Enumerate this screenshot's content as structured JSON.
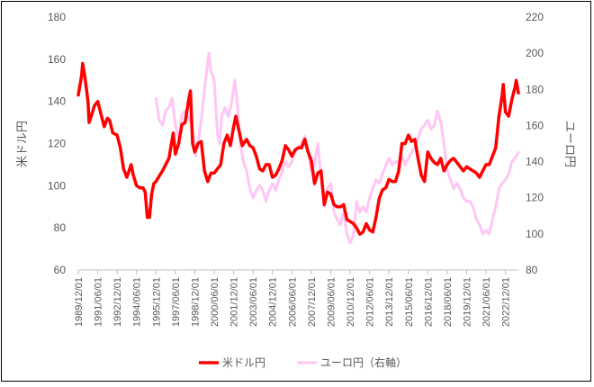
{
  "chart_data": {
    "type": "line",
    "title": "",
    "ylabel": "米ドル円",
    "y2label": "ユーロ円",
    "ylim": [
      60,
      180
    ],
    "y2lim": [
      80,
      220
    ],
    "yticks": [
      "60",
      "80",
      "100",
      "120",
      "140",
      "160",
      "180"
    ],
    "y2ticks": [
      "80",
      "100",
      "120",
      "140",
      "160",
      "180",
      "200",
      "220"
    ],
    "xlim": [
      "1989/12/01",
      "2023/12/01"
    ],
    "xticks": [
      "1989/12/01",
      "1991/06/01",
      "1992/12/01",
      "1994/06/01",
      "1995/12/01",
      "1997/06/01",
      "1998/12/01",
      "2000/06/01",
      "2001/12/01",
      "2003/06/01",
      "2004/12/01",
      "2006/06/01",
      "2007/12/01",
      "2009/06/01",
      "2010/12/01",
      "2012/06/01",
      "2013/12/01",
      "2015/06/01",
      "2016/12/01",
      "2018/06/01",
      "2019/12/01",
      "2021/06/01",
      "2022/12/01"
    ],
    "grid": false,
    "legend_position": "bottom",
    "series": [
      {
        "name": "米ドル円",
        "axis": "left",
        "color": "#ff0000",
        "points": [
          [
            "1989/12/01",
            143
          ],
          [
            "1990/03/01",
            152
          ],
          [
            "1990/04/01",
            158
          ],
          [
            "1990/06/01",
            152
          ],
          [
            "1990/09/01",
            140
          ],
          [
            "1990/10/01",
            130
          ],
          [
            "1990/12/01",
            133
          ],
          [
            "1991/03/01",
            138
          ],
          [
            "1991/06/01",
            140
          ],
          [
            "1991/09/01",
            134
          ],
          [
            "1991/12/01",
            128
          ],
          [
            "1992/03/01",
            132
          ],
          [
            "1992/05/01",
            131
          ],
          [
            "1992/08/01",
            125
          ],
          [
            "1992/12/01",
            124
          ],
          [
            "1993/03/01",
            118
          ],
          [
            "1993/06/01",
            108
          ],
          [
            "1993/09/01",
            104
          ],
          [
            "1994/01/01",
            110
          ],
          [
            "1994/03/01",
            105
          ],
          [
            "1994/06/01",
            100
          ],
          [
            "1994/09/01",
            99
          ],
          [
            "1994/12/01",
            99
          ],
          [
            "1995/02/01",
            97
          ],
          [
            "1995/04/01",
            85
          ],
          [
            "1995/06/01",
            85
          ],
          [
            "1995/08/01",
            96
          ],
          [
            "1995/10/01",
            101
          ],
          [
            "1995/12/01",
            102
          ],
          [
            "1996/06/01",
            107
          ],
          [
            "1996/12/01",
            113
          ],
          [
            "1997/04/01",
            125
          ],
          [
            "1997/06/01",
            115
          ],
          [
            "1997/09/01",
            120
          ],
          [
            "1997/12/01",
            129
          ],
          [
            "1998/03/01",
            130
          ],
          [
            "1998/06/01",
            140
          ],
          [
            "1998/08/01",
            145
          ],
          [
            "1998/10/01",
            120
          ],
          [
            "1998/12/01",
            116
          ],
          [
            "1999/03/01",
            120
          ],
          [
            "1999/06/01",
            121
          ],
          [
            "1999/09/01",
            107
          ],
          [
            "1999/12/01",
            102
          ],
          [
            "2000/03/01",
            106
          ],
          [
            "2000/06/01",
            106
          ],
          [
            "2000/09/01",
            108
          ],
          [
            "2000/12/01",
            110
          ],
          [
            "2001/03/01",
            120
          ],
          [
            "2001/06/01",
            124
          ],
          [
            "2001/09/01",
            119
          ],
          [
            "2001/12/01",
            128
          ],
          [
            "2002/02/01",
            133
          ],
          [
            "2002/05/01",
            126
          ],
          [
            "2002/08/01",
            119
          ],
          [
            "2002/12/01",
            122
          ],
          [
            "2003/03/01",
            119
          ],
          [
            "2003/06/01",
            118
          ],
          [
            "2003/09/01",
            114
          ],
          [
            "2003/12/01",
            108
          ],
          [
            "2004/03/01",
            107
          ],
          [
            "2004/06/01",
            110
          ],
          [
            "2004/09/01",
            110
          ],
          [
            "2004/12/01",
            104
          ],
          [
            "2005/03/01",
            105
          ],
          [
            "2005/06/01",
            108
          ],
          [
            "2005/09/01",
            112
          ],
          [
            "2005/12/01",
            119
          ],
          [
            "2006/03/01",
            117
          ],
          [
            "2006/06/01",
            114
          ],
          [
            "2006/09/01",
            117
          ],
          [
            "2006/12/01",
            118
          ],
          [
            "2007/03/01",
            118
          ],
          [
            "2007/06/01",
            122
          ],
          [
            "2007/09/01",
            116
          ],
          [
            "2007/12/01",
            112
          ],
          [
            "2008/03/01",
            101
          ],
          [
            "2008/06/01",
            106
          ],
          [
            "2008/09/01",
            107
          ],
          [
            "2008/12/01",
            91
          ],
          [
            "2009/03/01",
            97
          ],
          [
            "2009/06/01",
            96
          ],
          [
            "2009/09/01",
            91
          ],
          [
            "2009/12/01",
            90
          ],
          [
            "2010/03/01",
            90
          ],
          [
            "2010/06/01",
            91
          ],
          [
            "2010/09/01",
            84
          ],
          [
            "2010/12/01",
            83
          ],
          [
            "2011/03/01",
            82
          ],
          [
            "2011/06/01",
            80
          ],
          [
            "2011/09/01",
            77
          ],
          [
            "2011/12/01",
            78
          ],
          [
            "2012/03/01",
            82
          ],
          [
            "2012/06/01",
            79
          ],
          [
            "2012/09/01",
            78
          ],
          [
            "2012/12/01",
            85
          ],
          [
            "2013/03/01",
            94
          ],
          [
            "2013/06/01",
            98
          ],
          [
            "2013/09/01",
            99
          ],
          [
            "2013/12/01",
            103
          ],
          [
            "2014/03/01",
            102
          ],
          [
            "2014/06/01",
            102
          ],
          [
            "2014/09/01",
            107
          ],
          [
            "2014/12/01",
            120
          ],
          [
            "2015/03/01",
            120
          ],
          [
            "2015/06/01",
            124
          ],
          [
            "2015/09/01",
            121
          ],
          [
            "2015/12/01",
            122
          ],
          [
            "2016/03/01",
            113
          ],
          [
            "2016/06/01",
            105
          ],
          [
            "2016/09/01",
            102
          ],
          [
            "2016/12/01",
            116
          ],
          [
            "2017/03/01",
            113
          ],
          [
            "2017/06/01",
            111
          ],
          [
            "2017/09/01",
            110
          ],
          [
            "2017/12/01",
            113
          ],
          [
            "2018/03/01",
            107
          ],
          [
            "2018/06/01",
            110
          ],
          [
            "2018/09/01",
            112
          ],
          [
            "2018/12/01",
            113
          ],
          [
            "2019/03/01",
            111
          ],
          [
            "2019/06/01",
            109
          ],
          [
            "2019/09/01",
            107
          ],
          [
            "2019/12/01",
            109
          ],
          [
            "2020/03/01",
            108
          ],
          [
            "2020/06/01",
            107
          ],
          [
            "2020/09/01",
            106
          ],
          [
            "2020/12/01",
            104
          ],
          [
            "2021/03/01",
            107
          ],
          [
            "2021/06/01",
            110
          ],
          [
            "2021/09/01",
            110
          ],
          [
            "2021/12/01",
            114
          ],
          [
            "2022/03/01",
            118
          ],
          [
            "2022/06/01",
            133
          ],
          [
            "2022/09/01",
            143
          ],
          [
            "2022/10/01",
            148
          ],
          [
            "2022/12/01",
            135
          ],
          [
            "2023/03/01",
            133
          ],
          [
            "2023/06/01",
            141
          ],
          [
            "2023/09/01",
            147
          ],
          [
            "2023/10/01",
            150
          ],
          [
            "2023/12/01",
            144
          ]
        ]
      },
      {
        "name": "ユーロ円（右軸）",
        "axis": "right",
        "color": "#ffc6f5",
        "points": [
          [
            "1995/12/01",
            175
          ],
          [
            "1996/03/01",
            163
          ],
          [
            "1996/06/01",
            160
          ],
          [
            "1996/09/01",
            168
          ],
          [
            "1996/12/01",
            170
          ],
          [
            "1997/03/01",
            175
          ],
          [
            "1997/06/01",
            160
          ],
          [
            "1997/09/01",
            152
          ],
          [
            "1997/12/01",
            166
          ],
          [
            "1998/03/01",
            168
          ],
          [
            "1998/06/01",
            165
          ],
          [
            "1998/09/01",
            160
          ],
          [
            "1998/12/01",
            150
          ],
          [
            "1999/01/01",
            143
          ],
          [
            "1999/03/01",
            150
          ],
          [
            "1999/06/01",
            163
          ],
          [
            "1999/09/01",
            180
          ],
          [
            "1999/11/01",
            190
          ],
          [
            "2000/01/01",
            200
          ],
          [
            "2000/03/01",
            190
          ],
          [
            "2000/06/01",
            185
          ],
          [
            "2000/09/01",
            155
          ],
          [
            "2000/11/01",
            150
          ],
          [
            "2001/01/01",
            165
          ],
          [
            "2001/04/01",
            170
          ],
          [
            "2001/07/01",
            165
          ],
          [
            "2001/10/01",
            172
          ],
          [
            "2002/01/01",
            185
          ],
          [
            "2002/03/01",
            175
          ],
          [
            "2002/06/01",
            150
          ],
          [
            "2002/09/01",
            140
          ],
          [
            "2002/12/01",
            135
          ],
          [
            "2003/03/01",
            125
          ],
          [
            "2003/06/01",
            120
          ],
          [
            "2003/09/01",
            124
          ],
          [
            "2003/12/01",
            127
          ],
          [
            "2004/03/01",
            124
          ],
          [
            "2004/06/01",
            118
          ],
          [
            "2004/09/01",
            124
          ],
          [
            "2004/12/01",
            128
          ],
          [
            "2005/03/01",
            124
          ],
          [
            "2005/06/01",
            130
          ],
          [
            "2005/09/01",
            135
          ],
          [
            "2005/12/01",
            140
          ],
          [
            "2006/03/01",
            137
          ],
          [
            "2006/06/01",
            140
          ],
          [
            "2006/09/01",
            145
          ],
          [
            "2006/12/01",
            148
          ],
          [
            "2007/03/01",
            150
          ],
          [
            "2007/06/01",
            154
          ],
          [
            "2007/09/01",
            145
          ],
          [
            "2007/12/01",
            135
          ],
          [
            "2008/03/01",
            138
          ],
          [
            "2008/06/01",
            150
          ],
          [
            "2008/09/01",
            132
          ],
          [
            "2008/12/01",
            115
          ],
          [
            "2009/03/01",
            125
          ],
          [
            "2009/06/01",
            128
          ],
          [
            "2009/09/01",
            112
          ],
          [
            "2009/12/01",
            108
          ],
          [
            "2010/03/01",
            105
          ],
          [
            "2010/06/01",
            112
          ],
          [
            "2010/09/01",
            100
          ],
          [
            "2010/12/01",
            95
          ],
          [
            "2011/03/01",
            99
          ],
          [
            "2011/06/01",
            118
          ],
          [
            "2011/09/01",
            112
          ],
          [
            "2011/12/01",
            115
          ],
          [
            "2012/03/01",
            112
          ],
          [
            "2012/06/01",
            120
          ],
          [
            "2012/09/01",
            125
          ],
          [
            "2012/12/01",
            130
          ],
          [
            "2013/03/01",
            128
          ],
          [
            "2013/06/01",
            133
          ],
          [
            "2013/09/01",
            138
          ],
          [
            "2013/12/01",
            142
          ],
          [
            "2014/03/01",
            138
          ],
          [
            "2014/06/01",
            140
          ],
          [
            "2014/09/01",
            140
          ],
          [
            "2014/12/01",
            143
          ],
          [
            "2015/03/01",
            138
          ],
          [
            "2015/06/01",
            142
          ],
          [
            "2015/09/01",
            145
          ],
          [
            "2015/12/01",
            148
          ],
          [
            "2016/03/01",
            153
          ],
          [
            "2016/06/01",
            158
          ],
          [
            "2016/09/01",
            160
          ],
          [
            "2016/12/01",
            163
          ],
          [
            "2017/03/01",
            158
          ],
          [
            "2017/06/01",
            160
          ],
          [
            "2017/09/01",
            168
          ],
          [
            "2017/12/01",
            162
          ],
          [
            "2018/03/01",
            150
          ],
          [
            "2018/06/01",
            135
          ],
          [
            "2018/09/01",
            130
          ],
          [
            "2018/12/01",
            125
          ],
          [
            "2019/03/01",
            128
          ],
          [
            "2019/06/01",
            125
          ],
          [
            "2019/09/01",
            120
          ],
          [
            "2019/12/01",
            118
          ],
          [
            "2020/03/01",
            118
          ],
          [
            "2020/06/01",
            115
          ],
          [
            "2020/09/01",
            108
          ],
          [
            "2020/12/01",
            105
          ],
          [
            "2021/03/01",
            100
          ],
          [
            "2021/06/01",
            102
          ],
          [
            "2021/09/01",
            100
          ],
          [
            "2021/12/01",
            108
          ],
          [
            "2022/03/01",
            115
          ],
          [
            "2022/06/01",
            125
          ],
          [
            "2022/09/01",
            128
          ],
          [
            "2022/12/01",
            130
          ],
          [
            "2023/03/01",
            133
          ],
          [
            "2023/06/01",
            140
          ],
          [
            "2023/09/01",
            142
          ],
          [
            "2023/12/01",
            145
          ]
        ]
      }
    ]
  }
}
